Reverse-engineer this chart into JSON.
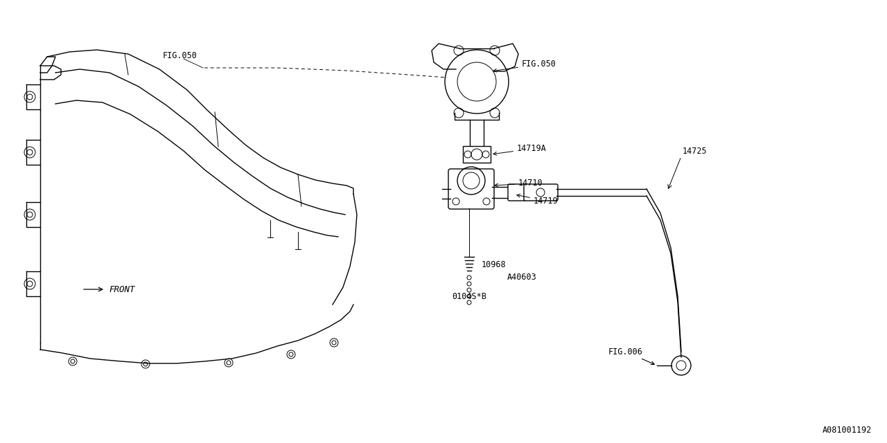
{
  "bg_color": "#ffffff",
  "line_color": "#000000",
  "fig_width": 12.8,
  "fig_height": 6.4,
  "labels": {
    "FIG050_left": "FIG.050",
    "FIG050_right": "FIG.050",
    "14719A": "14719A",
    "14710": "14710",
    "14719": "14719",
    "14725": "14725",
    "10968": "10968",
    "A40603": "A40603",
    "0104S_B": "0104S*B",
    "FIG006": "FIG.006",
    "FRONT": "FRONT",
    "part_num": "A081001192"
  },
  "font_family": "monospace",
  "label_fontsize": 8.5
}
